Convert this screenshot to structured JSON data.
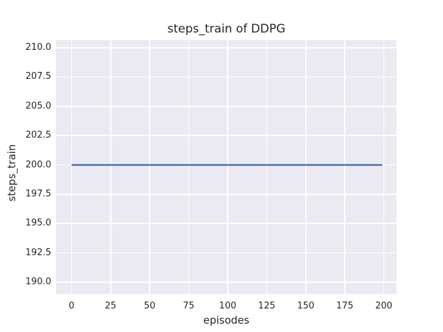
{
  "figure": {
    "background": "#ffffff"
  },
  "chart_data": {
    "type": "line",
    "title": "steps_train of DDPG",
    "xlabel": "episodes",
    "ylabel": "steps_train",
    "xlim": [
      -9.95,
      208.2
    ],
    "ylim": [
      189.0,
      210.65
    ],
    "xticks": [
      0,
      25,
      50,
      75,
      100,
      125,
      150,
      175,
      200
    ],
    "xticklabels": [
      "0",
      "25",
      "50",
      "75",
      "100",
      "125",
      "150",
      "175",
      "200"
    ],
    "yticks": [
      190.0,
      192.5,
      195.0,
      197.5,
      200.0,
      202.5,
      205.0,
      207.5,
      210.0
    ],
    "yticklabels": [
      "190.0",
      "192.5",
      "195.0",
      "197.5",
      "200.0",
      "202.5",
      "205.0",
      "207.5",
      "210.0"
    ],
    "grid": true,
    "legend_visible": false,
    "style": {
      "axes_background": "#eaeaf2",
      "grid_color": "#ffffff",
      "text_color": "#262626",
      "line_width": 2.4
    },
    "series": [
      {
        "name": "steps_train",
        "color": "#4c72b0",
        "x": [
          0,
          199
        ],
        "y": [
          200,
          200
        ],
        "description": "constant value 200 across episodes 0 to 199"
      }
    ]
  }
}
